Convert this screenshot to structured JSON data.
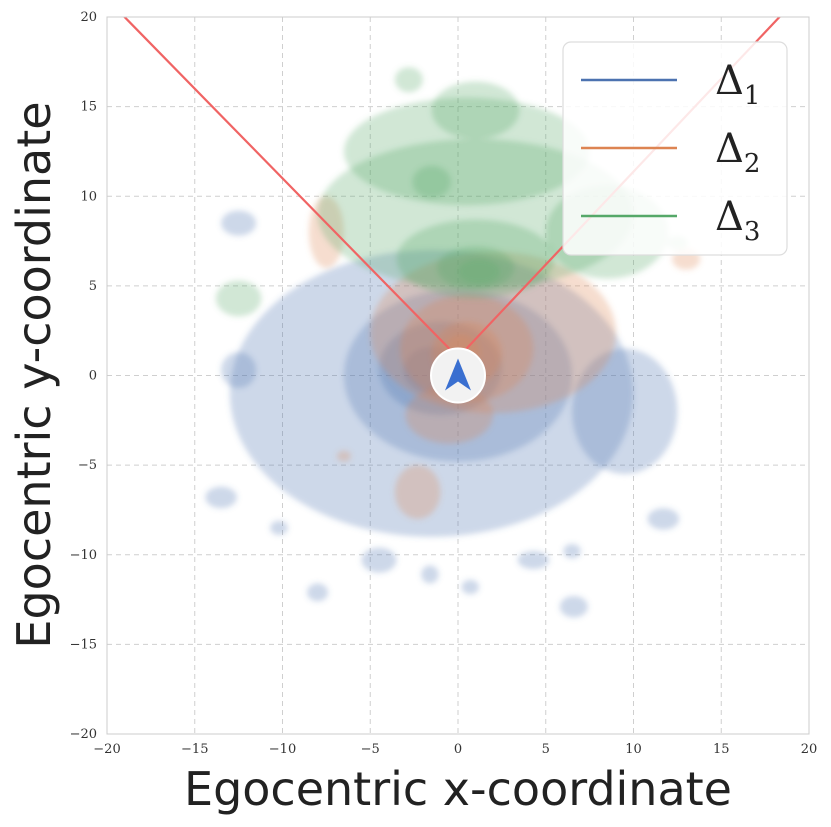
{
  "chart_data": {
    "type": "density-contour",
    "title": "",
    "xlabel": "Egocentric x-coordinate",
    "ylabel": "Egocentric y-coordinate",
    "xlim": [
      -20,
      20
    ],
    "ylim": [
      -20,
      20
    ],
    "xticks": [
      -20,
      -15,
      -10,
      -5,
      0,
      5,
      10,
      15,
      20
    ],
    "yticks": [
      -20,
      -15,
      -10,
      -5,
      0,
      5,
      10,
      15,
      20
    ],
    "xtick_labels": [
      "−20",
      "−15",
      "−10",
      "−5",
      "0",
      "5",
      "10",
      "15",
      "20"
    ],
    "ytick_labels": [
      "−20",
      "−15",
      "−10",
      "−5",
      "0",
      "5",
      "10",
      "15",
      "20"
    ],
    "grid": true,
    "legend_position": "top-right",
    "series": [
      {
        "name": "Δ",
        "subscript": "1",
        "color": "#4c72b0",
        "blobs": [
          {
            "cx": -1.5,
            "cy": -1.0,
            "rx": 11.5,
            "ry": 8.0
          },
          {
            "cx": 0.0,
            "cy": 0.0,
            "rx": 6.5,
            "ry": 4.8
          },
          {
            "cx": -1.0,
            "cy": 0.4,
            "rx": 3.5,
            "ry": 2.6
          },
          {
            "cx": -1.5,
            "cy": 0.3,
            "rx": 1.6,
            "ry": 1.3
          },
          {
            "cx": 9.5,
            "cy": -2.0,
            "rx": 3.0,
            "ry": 3.5
          },
          {
            "cx": -12.5,
            "cy": 0.3,
            "rx": 1.0,
            "ry": 1.0
          },
          {
            "cx": -13.5,
            "cy": -6.8,
            "rx": 0.9,
            "ry": 0.6
          },
          {
            "cx": -10.2,
            "cy": -8.5,
            "rx": 0.5,
            "ry": 0.4
          },
          {
            "cx": -4.5,
            "cy": -10.3,
            "rx": 1.0,
            "ry": 0.7
          },
          {
            "cx": -1.6,
            "cy": -11.1,
            "rx": 0.5,
            "ry": 0.5
          },
          {
            "cx": 0.7,
            "cy": -11.8,
            "rx": 0.5,
            "ry": 0.4
          },
          {
            "cx": 4.3,
            "cy": -10.3,
            "rx": 0.9,
            "ry": 0.5
          },
          {
            "cx": 6.5,
            "cy": -9.8,
            "rx": 0.5,
            "ry": 0.4
          },
          {
            "cx": 11.7,
            "cy": -8.0,
            "rx": 0.9,
            "ry": 0.6
          },
          {
            "cx": 6.6,
            "cy": -12.9,
            "rx": 0.8,
            "ry": 0.6
          },
          {
            "cx": -8.0,
            "cy": -12.1,
            "rx": 0.6,
            "ry": 0.5
          },
          {
            "cx": -12.5,
            "cy": 8.5,
            "rx": 1.0,
            "ry": 0.7
          }
        ]
      },
      {
        "name": "Δ",
        "subscript": "2",
        "color": "#dd8452",
        "blobs": [
          {
            "cx": 2.0,
            "cy": 2.4,
            "rx": 7.0,
            "ry": 4.5
          },
          {
            "cx": 0.5,
            "cy": 1.5,
            "rx": 3.8,
            "ry": 3.0
          },
          {
            "cx": 0.5,
            "cy": 1.2,
            "rx": 2.0,
            "ry": 1.8
          },
          {
            "cx": 0.2,
            "cy": 1.3,
            "rx": 1.0,
            "ry": 1.0
          },
          {
            "cx": -0.5,
            "cy": -2.2,
            "rx": 2.5,
            "ry": 1.6
          },
          {
            "cx": -2.3,
            "cy": -6.5,
            "rx": 1.3,
            "ry": 1.5
          },
          {
            "cx": -7.5,
            "cy": 8.0,
            "rx": 1.0,
            "ry": 2.0
          },
          {
            "cx": 13.0,
            "cy": 6.5,
            "rx": 0.8,
            "ry": 0.6
          },
          {
            "cx": -6.5,
            "cy": -4.5,
            "rx": 0.4,
            "ry": 0.3
          }
        ]
      },
      {
        "name": "Δ",
        "subscript": "3",
        "color": "#55a868",
        "blobs": [
          {
            "cx": 1.0,
            "cy": 9.0,
            "rx": 9.0,
            "ry": 4.2
          },
          {
            "cx": 0.5,
            "cy": 12.5,
            "rx": 7.0,
            "ry": 3.0
          },
          {
            "cx": 1.0,
            "cy": 14.8,
            "rx": 2.5,
            "ry": 1.6
          },
          {
            "cx": 8.5,
            "cy": 8.0,
            "rx": 3.5,
            "ry": 2.6
          },
          {
            "cx": 1.0,
            "cy": 6.5,
            "rx": 4.5,
            "ry": 2.2
          },
          {
            "cx": 1.0,
            "cy": 6.0,
            "rx": 2.2,
            "ry": 1.2
          },
          {
            "cx": 1.2,
            "cy": 5.8,
            "rx": 1.2,
            "ry": 0.7
          },
          {
            "cx": -1.5,
            "cy": 10.8,
            "rx": 1.1,
            "ry": 0.9
          },
          {
            "cx": -12.5,
            "cy": 4.3,
            "rx": 1.3,
            "ry": 1.0
          },
          {
            "cx": -2.8,
            "cy": 16.5,
            "rx": 0.8,
            "ry": 0.7
          },
          {
            "cx": 12.5,
            "cy": 7.4,
            "rx": 0.6,
            "ry": 0.4
          }
        ]
      }
    ],
    "fov_lines": [
      {
        "x1": 0,
        "y1": 1.0,
        "x2": -19.5,
        "y2": 20.5
      },
      {
        "x1": 0,
        "y1": 1.0,
        "x2": 18.8,
        "y2": 20.5
      }
    ],
    "fov_color": "#f06464",
    "agent_marker": {
      "x": 0,
      "y": 0,
      "marker_color": "#3a6fd0",
      "background": "#f2f2f2"
    }
  }
}
